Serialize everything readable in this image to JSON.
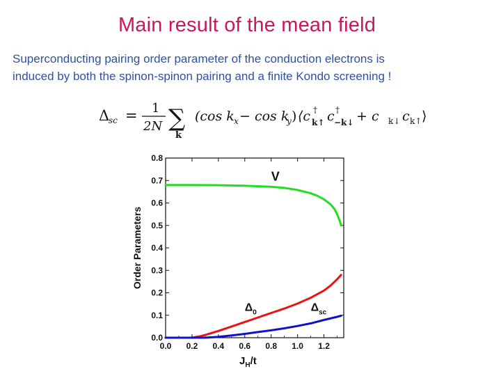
{
  "slide": {
    "title": "Main result of the mean field",
    "body_line1": "Superconducting pairing order parameter of the conduction electrons is",
    "body_line2": "induced by both the spinon-spinon pairing  and a finite Kondo screening !"
  },
  "colors": {
    "title": "#c8175b",
    "body": "#2f4fa0",
    "series_V": "#22dd22",
    "series_delta0": "#ee1111",
    "series_dsc": "#1111cc"
  },
  "equation": {
    "lhs": "Δ",
    "lhs_sub": "sc",
    "eq": "=",
    "frac_num": "1",
    "frac_den": "2N",
    "sum": "∑",
    "sum_sub": "k",
    "paren": "(cos k",
    "kx_sub": "x",
    "minus_cos": " − cos k",
    "ky_sub": "y",
    "close_paren": ")",
    "bracket_open": "⟨c",
    "c1_sup": "†",
    "c1_sub": "k↑",
    "c2": "c",
    "c2_sup": "†",
    "c2_sub": "−k↓",
    "plus": "+ c",
    "c3_sub": "k↓",
    "c4": "c",
    "c4_sub": "k↑",
    "bracket_close": "⟩"
  },
  "chart_data": {
    "type": "line",
    "xlabel": "J",
    "xlabel_sub": "H",
    "xlabel_tail": "/t",
    "ylabel": "Order Parameters",
    "xlim": [
      0.0,
      1.35
    ],
    "ylim": [
      0.0,
      0.8
    ],
    "xticks": [
      "0.0",
      "0.2",
      "0.4",
      "0.6",
      "0.8",
      "1.0",
      "1.2"
    ],
    "xtick_values": [
      0.0,
      0.2,
      0.4,
      0.6,
      0.8,
      1.0,
      1.2
    ],
    "yticks": [
      "0.0",
      "0.1",
      "0.2",
      "0.3",
      "0.4",
      "0.5",
      "0.6",
      "0.7",
      "0.8"
    ],
    "ytick_values": [
      0.0,
      0.1,
      0.2,
      0.3,
      0.4,
      0.5,
      0.6,
      0.7,
      0.8
    ],
    "series": [
      {
        "name": "V",
        "color": "#22dd22",
        "points": [
          [
            0.0,
            0.68
          ],
          [
            0.2,
            0.68
          ],
          [
            0.4,
            0.679
          ],
          [
            0.6,
            0.677
          ],
          [
            0.8,
            0.672
          ],
          [
            0.9,
            0.667
          ],
          [
            1.0,
            0.658
          ],
          [
            1.1,
            0.643
          ],
          [
            1.15,
            0.632
          ],
          [
            1.2,
            0.616
          ],
          [
            1.25,
            0.594
          ],
          [
            1.28,
            0.573
          ],
          [
            1.3,
            0.55
          ],
          [
            1.32,
            0.52
          ],
          [
            1.33,
            0.5
          ]
        ]
      },
      {
        "name": "Δ0",
        "label_main": "Δ",
        "label_sub": "0",
        "color": "#ee1111",
        "points": [
          [
            0.0,
            0.0
          ],
          [
            0.2,
            0.0
          ],
          [
            0.25,
            0.005
          ],
          [
            0.3,
            0.012
          ],
          [
            0.4,
            0.03
          ],
          [
            0.5,
            0.05
          ],
          [
            0.6,
            0.07
          ],
          [
            0.7,
            0.09
          ],
          [
            0.8,
            0.11
          ],
          [
            0.9,
            0.13
          ],
          [
            1.0,
            0.152
          ],
          [
            1.1,
            0.178
          ],
          [
            1.2,
            0.21
          ],
          [
            1.25,
            0.232
          ],
          [
            1.3,
            0.26
          ],
          [
            1.33,
            0.28
          ]
        ]
      },
      {
        "name": "Δsc",
        "label_main": "Δ",
        "label_sub": "sc",
        "color": "#1111cc",
        "points": [
          [
            0.0,
            0.0
          ],
          [
            0.3,
            0.0
          ],
          [
            0.4,
            0.004
          ],
          [
            0.5,
            0.01
          ],
          [
            0.6,
            0.017
          ],
          [
            0.7,
            0.025
          ],
          [
            0.8,
            0.033
          ],
          [
            0.9,
            0.042
          ],
          [
            1.0,
            0.052
          ],
          [
            1.1,
            0.064
          ],
          [
            1.2,
            0.079
          ],
          [
            1.3,
            0.093
          ],
          [
            1.33,
            0.098
          ]
        ]
      }
    ],
    "annotations": [
      {
        "series": "V",
        "x": 0.8,
        "y": 0.7
      },
      {
        "series": "Δ0",
        "x": 0.6,
        "y": 0.12
      },
      {
        "series": "Δsc",
        "x": 1.1,
        "y": 0.12
      }
    ]
  }
}
